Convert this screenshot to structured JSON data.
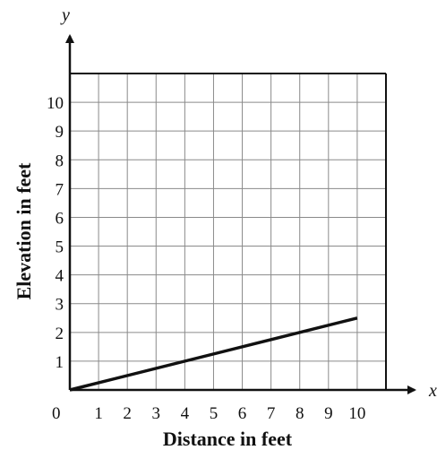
{
  "chart_data": {
    "type": "line",
    "xlabel": "Distance in feet",
    "ylabel": "Elevation in feet",
    "x_var": "x",
    "y_var": "y",
    "origin_label": "0",
    "xlim": [
      0,
      11
    ],
    "ylim": [
      0,
      11
    ],
    "x_ticks": [
      "1",
      "2",
      "3",
      "4",
      "5",
      "6",
      "7",
      "8",
      "9",
      "10"
    ],
    "y_ticks": [
      "1",
      "2",
      "3",
      "4",
      "5",
      "6",
      "7",
      "8",
      "9",
      "10"
    ],
    "grid": true,
    "series": [
      {
        "x": [
          0,
          10
        ],
        "y": [
          0,
          2.5
        ]
      }
    ]
  }
}
